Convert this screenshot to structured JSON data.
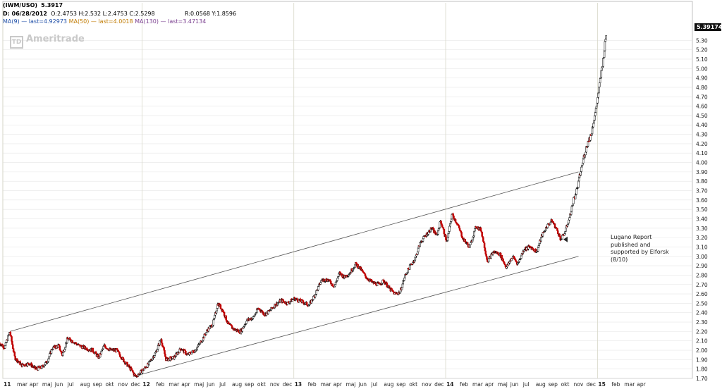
{
  "header": {
    "symbol": "(IWM/USO)",
    "symbol_value": "5.3917",
    "date_label": "D: 06/28/2012",
    "ohlc": "O:2.4753 H:2.532 L:2.4753 C:2.5298",
    "range": "R:0.0568 Y:1.8596",
    "ma9": "MA(9) — last=4.92973",
    "ma50": "MA(50) — last=4.0018",
    "ma130": "MA(130) — last=3.47134"
  },
  "watermark": "Ameritrade",
  "watermark_logo": "TD",
  "annotation": [
    "Lugano Report",
    "published and",
    "supported by Elforsk",
    "(8/10)"
  ],
  "last_price_label": "5.39174",
  "colors": {
    "up": "#000000",
    "down": "#c00000",
    "channel": "#555555",
    "grid": "#e6e6e6",
    "ma9": "#1f4fa8",
    "ma50": "#c07a00",
    "ma130": "#7a3f8f"
  },
  "chart_data": {
    "type": "candlestick",
    "title": "(IWM/USO)",
    "ylim": [
      1.7,
      5.4
    ],
    "y_ticks": [
      1.7,
      1.8,
      1.9,
      2.0,
      2.1,
      2.2,
      2.3,
      2.4,
      2.5,
      2.6,
      2.7,
      2.8,
      2.9,
      3.0,
      3.1,
      3.2,
      3.3,
      3.4,
      3.5,
      3.6,
      3.7,
      3.8,
      3.9,
      4.0,
      4.1,
      4.2,
      4.3,
      4.4,
      4.5,
      4.6,
      4.7,
      4.8,
      4.9,
      5.0,
      5.1,
      5.2,
      5.3
    ],
    "x_range": [
      0,
      54.5
    ],
    "x_labels": [
      {
        "m": 0,
        "t": "11"
      },
      {
        "m": 1,
        "t": "mar"
      },
      {
        "m": 2,
        "t": "apr"
      },
      {
        "m": 3,
        "t": "maj"
      },
      {
        "m": 4,
        "t": "jun"
      },
      {
        "m": 5,
        "t": "jul"
      },
      {
        "m": 6,
        "t": "aug"
      },
      {
        "m": 7,
        "t": "sep"
      },
      {
        "m": 8,
        "t": "okt"
      },
      {
        "m": 9,
        "t": "nov"
      },
      {
        "m": 10,
        "t": "dec"
      },
      {
        "m": 11,
        "t": "12"
      },
      {
        "m": 12,
        "t": "feb"
      },
      {
        "m": 13,
        "t": "mar"
      },
      {
        "m": 14,
        "t": "apr"
      },
      {
        "m": 15,
        "t": "maj"
      },
      {
        "m": 16,
        "t": "jun"
      },
      {
        "m": 17,
        "t": "jul"
      },
      {
        "m": 18,
        "t": "aug"
      },
      {
        "m": 19,
        "t": "sep"
      },
      {
        "m": 20,
        "t": "okt"
      },
      {
        "m": 21,
        "t": "nov"
      },
      {
        "m": 22,
        "t": "dec"
      },
      {
        "m": 23,
        "t": "13"
      },
      {
        "m": 24,
        "t": "feb"
      },
      {
        "m": 25,
        "t": "mar"
      },
      {
        "m": 26,
        "t": "apr"
      },
      {
        "m": 27,
        "t": "maj"
      },
      {
        "m": 28,
        "t": "jun"
      },
      {
        "m": 29,
        "t": "jul"
      },
      {
        "m": 30,
        "t": "aug"
      },
      {
        "m": 31,
        "t": "sep"
      },
      {
        "m": 32,
        "t": "okt"
      },
      {
        "m": 33,
        "t": "nov"
      },
      {
        "m": 34,
        "t": "dec"
      },
      {
        "m": 35,
        "t": "14"
      },
      {
        "m": 36,
        "t": "feb"
      },
      {
        "m": 37,
        "t": "mar"
      },
      {
        "m": 38,
        "t": "apr"
      },
      {
        "m": 39,
        "t": "maj"
      },
      {
        "m": 40,
        "t": "jun"
      },
      {
        "m": 41,
        "t": "jul"
      },
      {
        "m": 42,
        "t": "aug"
      },
      {
        "m": 43,
        "t": "sep"
      },
      {
        "m": 44,
        "t": "okt"
      },
      {
        "m": 45,
        "t": "nov"
      },
      {
        "m": 46,
        "t": "dec"
      },
      {
        "m": 47,
        "t": "15"
      },
      {
        "m": 48,
        "t": "feb"
      },
      {
        "m": 49,
        "t": "mar"
      },
      {
        "m": 50,
        "t": "apr"
      }
    ],
    "bold_labels": [
      "11",
      "12",
      "13",
      "14",
      "15"
    ],
    "price_path": [
      [
        -0.3,
        2.08
      ],
      [
        0.15,
        2.03
      ],
      [
        0.55,
        2.2
      ],
      [
        0.95,
        1.92
      ],
      [
        1.5,
        1.84
      ],
      [
        2.1,
        1.86
      ],
      [
        2.6,
        1.8
      ],
      [
        3.1,
        1.82
      ],
      [
        3.5,
        1.88
      ],
      [
        3.9,
        2.02
      ],
      [
        4.4,
        2.05
      ],
      [
        4.7,
        1.95
      ],
      [
        5.1,
        2.12
      ],
      [
        5.5,
        2.1
      ],
      [
        6.0,
        2.05
      ],
      [
        6.6,
        2.02
      ],
      [
        7.1,
        2.0
      ],
      [
        7.6,
        1.92
      ],
      [
        8.0,
        2.05
      ],
      [
        8.5,
        2.0
      ],
      [
        9.0,
        2.0
      ],
      [
        9.5,
        1.9
      ],
      [
        10.1,
        1.8
      ],
      [
        10.5,
        1.72
      ],
      [
        11.0,
        1.78
      ],
      [
        11.5,
        1.85
      ],
      [
        12.1,
        1.98
      ],
      [
        12.5,
        2.12
      ],
      [
        12.9,
        1.9
      ],
      [
        13.5,
        1.92
      ],
      [
        14.1,
        2.02
      ],
      [
        14.6,
        1.95
      ],
      [
        15.2,
        2.0
      ],
      [
        15.7,
        2.1
      ],
      [
        16.2,
        2.22
      ],
      [
        16.6,
        2.28
      ],
      [
        17.0,
        2.5
      ],
      [
        17.4,
        2.42
      ],
      [
        17.8,
        2.28
      ],
      [
        18.3,
        2.22
      ],
      [
        18.8,
        2.2
      ],
      [
        19.3,
        2.32
      ],
      [
        19.8,
        2.35
      ],
      [
        20.2,
        2.45
      ],
      [
        20.7,
        2.38
      ],
      [
        21.1,
        2.42
      ],
      [
        21.5,
        2.48
      ],
      [
        22.0,
        2.53
      ],
      [
        22.5,
        2.5
      ],
      [
        23.0,
        2.55
      ],
      [
        23.6,
        2.52
      ],
      [
        24.2,
        2.48
      ],
      [
        24.7,
        2.6
      ],
      [
        25.2,
        2.75
      ],
      [
        25.7,
        2.75
      ],
      [
        26.2,
        2.68
      ],
      [
        26.6,
        2.82
      ],
      [
        27.0,
        2.78
      ],
      [
        27.4,
        2.82
      ],
      [
        27.9,
        2.92
      ],
      [
        28.3,
        2.86
      ],
      [
        28.7,
        2.78
      ],
      [
        29.2,
        2.72
      ],
      [
        29.7,
        2.7
      ],
      [
        30.1,
        2.74
      ],
      [
        30.6,
        2.65
      ],
      [
        31.0,
        2.6
      ],
      [
        31.4,
        2.62
      ],
      [
        31.8,
        2.8
      ],
      [
        32.2,
        2.9
      ],
      [
        32.6,
        2.98
      ],
      [
        33.0,
        3.15
      ],
      [
        33.4,
        3.22
      ],
      [
        33.9,
        3.3
      ],
      [
        34.3,
        3.22
      ],
      [
        34.6,
        3.38
      ],
      [
        35.1,
        3.15
      ],
      [
        35.5,
        3.45
      ],
      [
        35.9,
        3.35
      ],
      [
        36.4,
        3.18
      ],
      [
        36.9,
        3.1
      ],
      [
        37.4,
        3.32
      ],
      [
        37.8,
        3.28
      ],
      [
        38.3,
        2.95
      ],
      [
        38.8,
        3.05
      ],
      [
        39.3,
        3.02
      ],
      [
        39.8,
        2.88
      ],
      [
        40.3,
        3.0
      ],
      [
        40.7,
        2.92
      ],
      [
        41.2,
        3.08
      ],
      [
        41.7,
        3.1
      ],
      [
        42.2,
        3.05
      ],
      [
        42.6,
        3.22
      ],
      [
        43.0,
        3.32
      ],
      [
        43.4,
        3.38
      ],
      [
        43.8,
        3.28
      ],
      [
        44.1,
        3.18
      ],
      [
        44.4,
        3.25
      ],
      [
        44.8,
        3.42
      ],
      [
        45.1,
        3.6
      ],
      [
        45.4,
        3.72
      ],
      [
        45.7,
        3.92
      ],
      [
        45.9,
        4.05
      ],
      [
        46.2,
        4.2
      ],
      [
        46.5,
        4.3
      ],
      [
        46.7,
        4.45
      ],
      [
        46.9,
        4.58
      ],
      [
        47.15,
        4.82
      ],
      [
        47.45,
        5.1
      ],
      [
        47.7,
        5.39
      ]
    ],
    "channel_lines": [
      {
        "x": [
          0.55,
          45.5
        ],
        "y": [
          2.2,
          3.9
        ]
      },
      {
        "x": [
          10.3,
          45.5
        ],
        "y": [
          1.72,
          3.0
        ]
      }
    ],
    "last_value": 5.39174
  }
}
